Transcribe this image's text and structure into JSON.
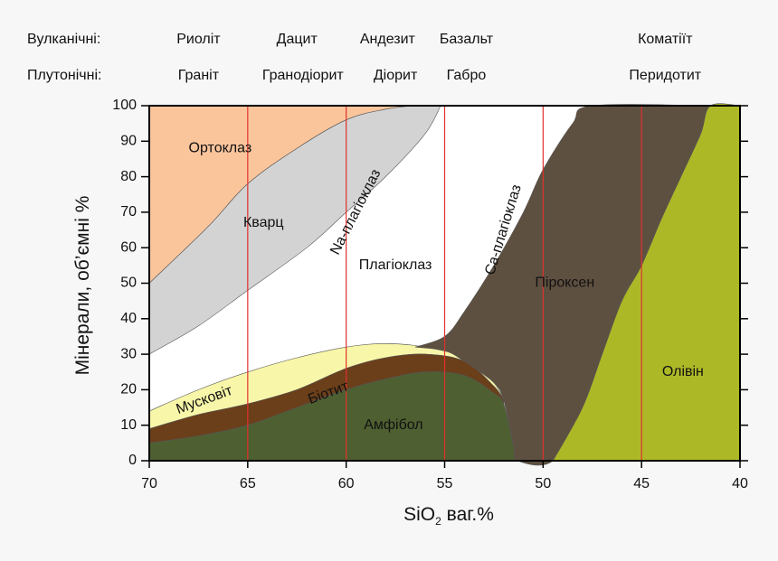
{
  "chart_data": {
    "type": "area",
    "xlabel_main": "SiO",
    "xlabel_sub": "2",
    "xlabel_rest": " ваг.%",
    "ylabel": "Мінерали, об’ємні %",
    "xlim": [
      70,
      40
    ],
    "ylim": [
      0,
      100
    ],
    "x_ticks": [
      70,
      65,
      60,
      55,
      50,
      45,
      40
    ],
    "y_ticks": [
      0,
      10,
      20,
      30,
      40,
      50,
      60,
      70,
      80,
      90,
      100
    ],
    "reference_lines_x": [
      65,
      60,
      55,
      50,
      45
    ],
    "header": {
      "row_labels": [
        "Вулканічні:",
        "Плутонічні:"
      ],
      "volcanic": [
        {
          "x": 67.5,
          "name": "Риоліт"
        },
        {
          "x": 62.5,
          "name": "Дацит"
        },
        {
          "x": 57.9,
          "name": "Андезит"
        },
        {
          "x": 53.9,
          "name": "Базальт"
        },
        {
          "x": 43.8,
          "name": "Коматіїт"
        }
      ],
      "plutonic": [
        {
          "x": 67.5,
          "name": "Граніт"
        },
        {
          "x": 62.2,
          "name": "Гранодіорит"
        },
        {
          "x": 57.5,
          "name": "Діорит"
        },
        {
          "x": 53.9,
          "name": "Габро"
        },
        {
          "x": 43.8,
          "name": "Перидотит"
        }
      ]
    },
    "colors": {
      "orthoclase": "#fbc59c",
      "quartz": "#d3d3d3",
      "plagioclase": "#ffffff",
      "muscovite": "#f8f6a8",
      "biotite": "#6b3f1a",
      "amphibole": "#4e5f31",
      "pyroxene": "#5e5040",
      "olivine": "#adb827",
      "reference_line": "#e0312e"
    },
    "series": [
      {
        "name": "Ортоклаз",
        "key": "orthoclase",
        "upper": [
          [
            70,
            100
          ],
          [
            56.5,
            100
          ]
        ],
        "lower": [
          [
            70,
            50
          ],
          [
            67,
            66
          ],
          [
            65,
            78
          ],
          [
            62.5,
            88
          ],
          [
            60,
            96
          ],
          [
            58,
            99
          ],
          [
            56.5,
            100
          ]
        ]
      },
      {
        "name": "Кварц",
        "key": "quartz",
        "upper": [
          [
            70,
            50
          ],
          [
            67,
            66
          ],
          [
            65,
            78
          ],
          [
            62.5,
            88
          ],
          [
            60,
            96
          ],
          [
            58,
            99
          ],
          [
            56.5,
            100
          ],
          [
            55.2,
            100
          ]
        ],
        "lower": [
          [
            70,
            30
          ],
          [
            67.5,
            38
          ],
          [
            65,
            48
          ],
          [
            62,
            60
          ],
          [
            60,
            70
          ],
          [
            58,
            80
          ],
          [
            56,
            92
          ],
          [
            55.2,
            100
          ]
        ]
      },
      {
        "name": "Мусковіт",
        "key": "muscovite",
        "upper": [
          [
            70,
            14
          ],
          [
            67.5,
            20
          ],
          [
            65,
            25
          ],
          [
            62.5,
            29
          ],
          [
            60,
            32
          ],
          [
            58,
            33
          ],
          [
            56,
            32
          ],
          [
            54,
            29
          ],
          [
            52.5,
            22
          ],
          [
            52,
            17
          ]
        ],
        "lower": [
          [
            70,
            9
          ],
          [
            67.5,
            13
          ],
          [
            65,
            16
          ],
          [
            62.5,
            20
          ],
          [
            60,
            26
          ],
          [
            58,
            29
          ],
          [
            56,
            30
          ],
          [
            54,
            28
          ],
          [
            52.5,
            21
          ],
          [
            52,
            17
          ]
        ]
      },
      {
        "name": "Біотит",
        "key": "biotite",
        "upper": [
          [
            70,
            9
          ],
          [
            67.5,
            13
          ],
          [
            65,
            16
          ],
          [
            62.5,
            20
          ],
          [
            60,
            26
          ],
          [
            58,
            29
          ],
          [
            56,
            30
          ],
          [
            54,
            28
          ],
          [
            52.5,
            21
          ],
          [
            52,
            17
          ]
        ],
        "lower": [
          [
            70,
            5
          ],
          [
            67.5,
            7
          ],
          [
            65,
            10
          ],
          [
            62.5,
            15
          ],
          [
            60,
            20
          ],
          [
            58,
            23
          ],
          [
            56,
            25
          ],
          [
            54,
            24
          ],
          [
            52.5,
            19
          ],
          [
            52,
            16
          ]
        ]
      },
      {
        "name": "Амфібол",
        "key": "amphibole",
        "upper": [
          [
            70,
            5
          ],
          [
            67.5,
            7
          ],
          [
            65,
            10
          ],
          [
            62.5,
            15
          ],
          [
            60,
            20
          ],
          [
            58,
            23
          ],
          [
            56,
            25
          ],
          [
            54,
            24
          ],
          [
            52.5,
            19
          ],
          [
            52,
            16
          ],
          [
            51.5,
            4
          ],
          [
            51.3,
            0
          ]
        ],
        "lower": [
          [
            70,
            0
          ],
          [
            51.3,
            0
          ]
        ]
      },
      {
        "name": "Піроксен",
        "key": "pyroxene",
        "upper": [
          [
            56.5,
            32
          ],
          [
            55,
            35
          ],
          [
            54,
            42
          ],
          [
            52.5,
            55
          ],
          [
            51,
            70
          ],
          [
            50,
            82
          ],
          [
            48.5,
            95
          ],
          [
            47.5,
            100
          ],
          [
            41.5,
            100
          ]
        ],
        "lower": [
          [
            56.5,
            32
          ],
          [
            55,
            31
          ],
          [
            54,
            28
          ],
          [
            52.5,
            22
          ],
          [
            52,
            17
          ],
          [
            51.5,
            4
          ],
          [
            51.3,
            0
          ],
          [
            49.5,
            0
          ],
          [
            48,
            15
          ],
          [
            47,
            30
          ],
          [
            46,
            45
          ],
          [
            45,
            55
          ],
          [
            44,
            68
          ],
          [
            43,
            80
          ],
          [
            42,
            92
          ],
          [
            41.5,
            100
          ]
        ]
      },
      {
        "name": "Олівін",
        "key": "olivine",
        "upper": [
          [
            49.5,
            0
          ],
          [
            48,
            15
          ],
          [
            47,
            30
          ],
          [
            46,
            45
          ],
          [
            45,
            55
          ],
          [
            44,
            68
          ],
          [
            43,
            80
          ],
          [
            42,
            92
          ],
          [
            41.5,
            100
          ],
          [
            40,
            100
          ]
        ],
        "lower": [
          [
            49.5,
            0
          ],
          [
            40,
            0
          ]
        ]
      }
    ],
    "labels": [
      {
        "text": "Ортоклаз",
        "x": 66.4,
        "y": 88,
        "rotate": 0
      },
      {
        "text": "Кварц",
        "x": 64.2,
        "y": 67,
        "rotate": 0
      },
      {
        "text": "Na-плагіоклаз",
        "x": 59.5,
        "y": 70,
        "rotate": -63
      },
      {
        "text": "Плагіоклаз",
        "x": 57.5,
        "y": 55,
        "rotate": 0
      },
      {
        "text": "Ca-плагіоклаз",
        "x": 52.0,
        "y": 65,
        "rotate": -73
      },
      {
        "text": "Піроксен",
        "x": 48.9,
        "y": 50,
        "rotate": 0
      },
      {
        "text": "Мусковіт",
        "x": 67.2,
        "y": 17,
        "rotate": -20
      },
      {
        "text": "Біотит",
        "x": 60.9,
        "y": 19,
        "rotate": -20
      },
      {
        "text": "Амфібол",
        "x": 57.6,
        "y": 10,
        "rotate": 0
      },
      {
        "text": "Олівін",
        "x": 42.9,
        "y": 25,
        "rotate": 0
      }
    ]
  }
}
